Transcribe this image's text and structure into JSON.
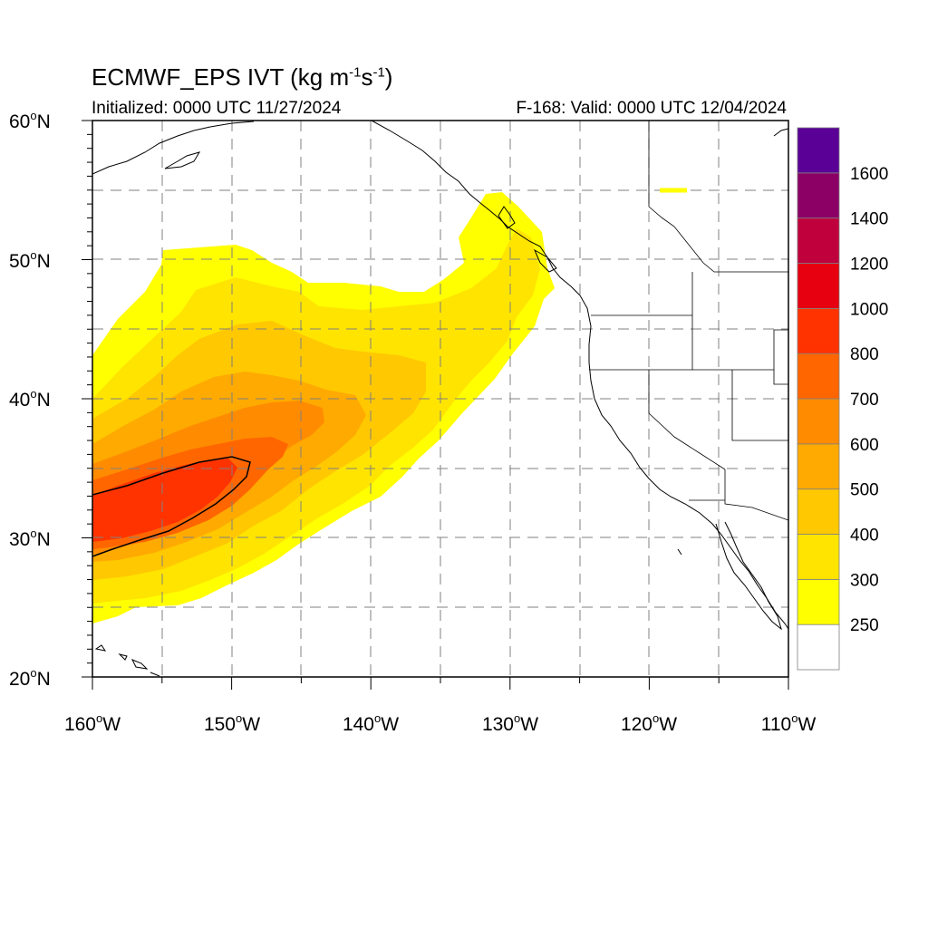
{
  "header": {
    "title_prefix": "ECMWF_EPS IVT (kg m",
    "title_exp1": "-1",
    "title_mid": "s",
    "title_exp2": "-1",
    "title_suffix": ")",
    "initialized": "Initialized: 0000 UTC 11/27/2024",
    "valid": "F-168: Valid: 0000 UTC 12/04/2024"
  },
  "axes": {
    "lat_labels": [
      "60",
      "50",
      "40",
      "30",
      "20"
    ],
    "lat_suffix": "N",
    "lon_labels": [
      "160",
      "150",
      "140",
      "130",
      "120",
      "110"
    ],
    "lon_suffix": "W",
    "lon_range": [
      -160,
      -110
    ],
    "lat_range": [
      20,
      60
    ],
    "grid": true
  },
  "colorbar": {
    "levels": [
      "250",
      "300",
      "400",
      "500",
      "600",
      "700",
      "800",
      "1000",
      "1200",
      "1400",
      "1600"
    ],
    "colors": [
      "#ffffff",
      "#ffff00",
      "#ffe400",
      "#ffc800",
      "#ffaa00",
      "#ff8c00",
      "#ff6600",
      "#ff3300",
      "#e60010",
      "#c0003c",
      "#8c0066",
      "#5a0096"
    ]
  },
  "colors": {
    "coast": "#000000",
    "grid": "#808080"
  }
}
